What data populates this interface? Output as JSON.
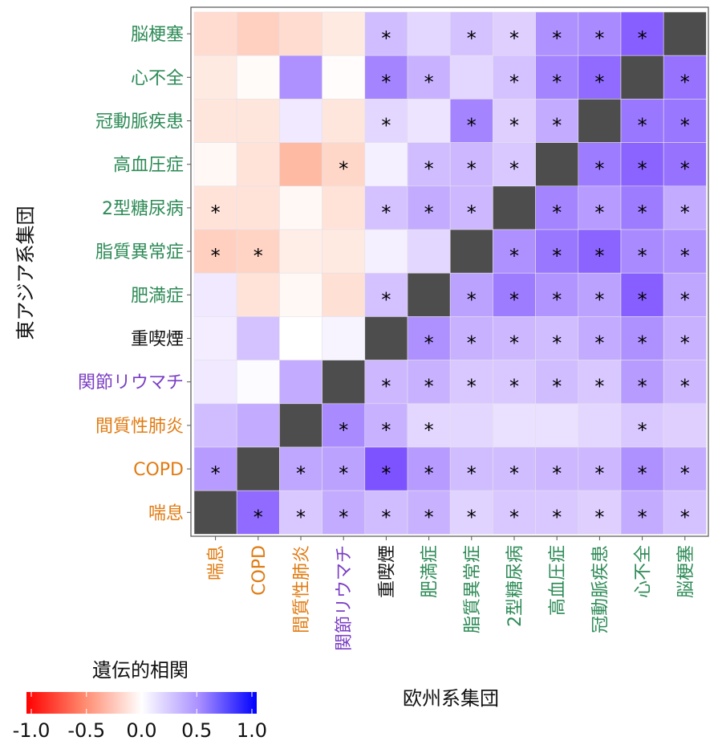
{
  "chart_data": {
    "type": "heatmap",
    "xlabel": "欧州系集団",
    "ylabel": "東アジア系集団",
    "x_categories": [
      "喘息",
      "COPD",
      "間質性肺炎",
      "関節リウマチ",
      "重喫煙",
      "肥満症",
      "脂質異常症",
      "2型糖尿病",
      "高血圧症",
      "冠動脈疾患",
      "心不全",
      "脳梗塞"
    ],
    "y_categories": [
      "脳梗塞",
      "心不全",
      "冠動脈疾患",
      "高血圧症",
      "2型糖尿病",
      "脂質異常症",
      "肥満症",
      "重喫煙",
      "関節リウマチ",
      "間質性肺炎",
      "COPD",
      "喘息"
    ],
    "category_groups": {
      "喘息": "respiratory",
      "COPD": "respiratory",
      "間質性肺炎": "respiratory",
      "関節リウマチ": "autoimmune",
      "重喫煙": "behavior",
      "肥満症": "cardiometabolic",
      "脂質異常症": "cardiometabolic",
      "2型糖尿病": "cardiometabolic",
      "高血圧症": "cardiometabolic",
      "冠動脈疾患": "cardiometabolic",
      "心不全": "cardiometabolic",
      "脳梗塞": "cardiometabolic"
    },
    "group_colors": {
      "respiratory": "#E07B12",
      "autoimmune": "#7B3FC4",
      "behavior": "#111111",
      "cardiometabolic": "#2E8B57"
    },
    "values": [
      [
        -0.25,
        -0.32,
        -0.25,
        -0.15,
        0.3,
        0.18,
        0.28,
        0.22,
        0.5,
        0.52,
        0.7,
        null
      ],
      [
        -0.15,
        -0.03,
        0.5,
        -0.02,
        0.55,
        0.35,
        0.18,
        0.28,
        0.55,
        0.65,
        null,
        0.62
      ],
      [
        -0.18,
        -0.18,
        0.1,
        -0.18,
        0.18,
        0.12,
        0.55,
        0.22,
        0.38,
        null,
        0.6,
        0.6
      ],
      [
        -0.05,
        -0.2,
        -0.45,
        -0.28,
        0.07,
        0.3,
        0.32,
        0.25,
        null,
        0.58,
        0.68,
        0.62
      ],
      [
        -0.2,
        -0.2,
        -0.05,
        -0.2,
        0.28,
        0.38,
        0.32,
        null,
        0.55,
        0.45,
        0.58,
        0.38
      ],
      [
        -0.32,
        -0.3,
        -0.12,
        -0.15,
        0.07,
        0.18,
        null,
        0.5,
        0.6,
        0.68,
        0.52,
        0.48
      ],
      [
        0.1,
        -0.2,
        -0.05,
        -0.22,
        0.28,
        null,
        0.42,
        0.58,
        0.48,
        0.42,
        0.7,
        0.4
      ],
      [
        0.08,
        0.28,
        0.0,
        0.05,
        null,
        0.5,
        0.35,
        0.32,
        0.3,
        0.38,
        0.5,
        0.35
      ],
      [
        0.1,
        0.02,
        0.38,
        null,
        0.32,
        0.35,
        0.25,
        0.25,
        0.3,
        0.25,
        0.45,
        0.32
      ],
      [
        0.3,
        0.38,
        null,
        0.52,
        0.35,
        0.18,
        0.18,
        0.14,
        0.14,
        0.18,
        0.25,
        0.22
      ],
      [
        0.45,
        null,
        0.4,
        0.42,
        0.75,
        0.45,
        0.3,
        0.3,
        0.32,
        0.32,
        0.5,
        0.38
      ],
      [
        null,
        0.65,
        0.25,
        0.38,
        0.3,
        0.35,
        0.2,
        0.25,
        0.25,
        0.22,
        0.38,
        0.28
      ]
    ],
    "significant": [
      [
        0,
        0,
        0,
        0,
        1,
        0,
        1,
        1,
        1,
        1,
        1,
        0
      ],
      [
        0,
        0,
        0,
        0,
        1,
        1,
        0,
        1,
        1,
        1,
        0,
        1
      ],
      [
        0,
        0,
        0,
        0,
        1,
        0,
        1,
        1,
        1,
        0,
        1,
        1
      ],
      [
        0,
        0,
        0,
        1,
        0,
        1,
        1,
        1,
        0,
        1,
        1,
        1
      ],
      [
        1,
        0,
        0,
        0,
        1,
        1,
        1,
        0,
        1,
        1,
        1,
        1
      ],
      [
        1,
        1,
        0,
        0,
        0,
        0,
        0,
        1,
        1,
        1,
        1,
        1
      ],
      [
        0,
        0,
        0,
        0,
        1,
        0,
        1,
        1,
        1,
        1,
        1,
        1
      ],
      [
        0,
        0,
        0,
        0,
        0,
        1,
        1,
        1,
        1,
        1,
        1,
        1
      ],
      [
        0,
        0,
        0,
        0,
        1,
        1,
        1,
        1,
        1,
        1,
        1,
        1
      ],
      [
        0,
        0,
        0,
        1,
        1,
        1,
        0,
        0,
        0,
        0,
        1,
        0
      ],
      [
        1,
        0,
        1,
        1,
        1,
        1,
        1,
        1,
        1,
        1,
        1,
        1
      ],
      [
        0,
        1,
        1,
        1,
        1,
        1,
        1,
        1,
        1,
        1,
        1,
        1
      ]
    ],
    "significance_marker": "*",
    "diagonal_color": "#4D4D4D",
    "color_scale": {
      "low": "#FF0000",
      "mid": "#FFFFFF",
      "high": "#0000FF",
      "range": [
        -1,
        1
      ]
    },
    "legend": {
      "title": "遺伝的相関",
      "ticks": [
        "-1.0",
        "-0.5",
        "0.0",
        "0.5",
        "1.0"
      ],
      "placement": "bottom-left"
    }
  }
}
